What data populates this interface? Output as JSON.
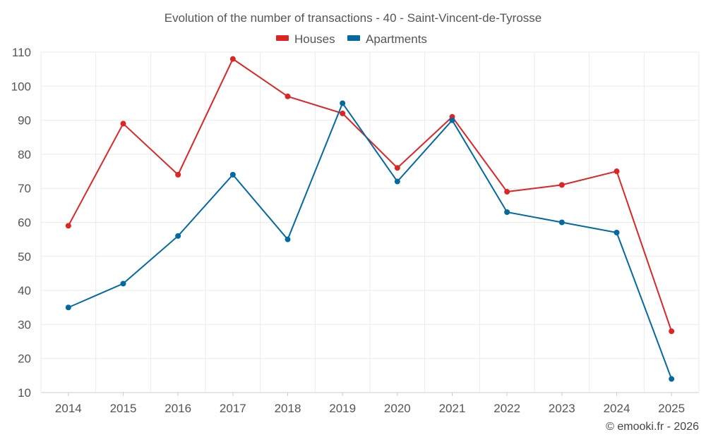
{
  "chart_data": {
    "type": "line",
    "title": "Evolution of the number of transactions - 40 - Saint-Vincent-de-Tyrosse",
    "categories": [
      "2014",
      "2015",
      "2016",
      "2017",
      "2018",
      "2019",
      "2020",
      "2021",
      "2022",
      "2023",
      "2024",
      "2025"
    ],
    "series": [
      {
        "name": "Houses",
        "color": "#dc2626",
        "values": [
          59,
          89,
          74,
          108,
          97,
          92,
          76,
          91,
          69,
          71,
          75,
          28
        ]
      },
      {
        "name": "Apartments",
        "color": "#0369a1",
        "values": [
          35,
          42,
          56,
          74,
          55,
          95,
          72,
          90,
          63,
          60,
          57,
          14
        ]
      }
    ],
    "ylim": [
      10,
      110
    ],
    "yticks": [
      10,
      20,
      30,
      40,
      50,
      60,
      70,
      80,
      90,
      100,
      110
    ],
    "grid": true,
    "legend_position": "top-center",
    "xlabel": "",
    "ylabel": ""
  },
  "credit": "© emooki.fr - 2026"
}
